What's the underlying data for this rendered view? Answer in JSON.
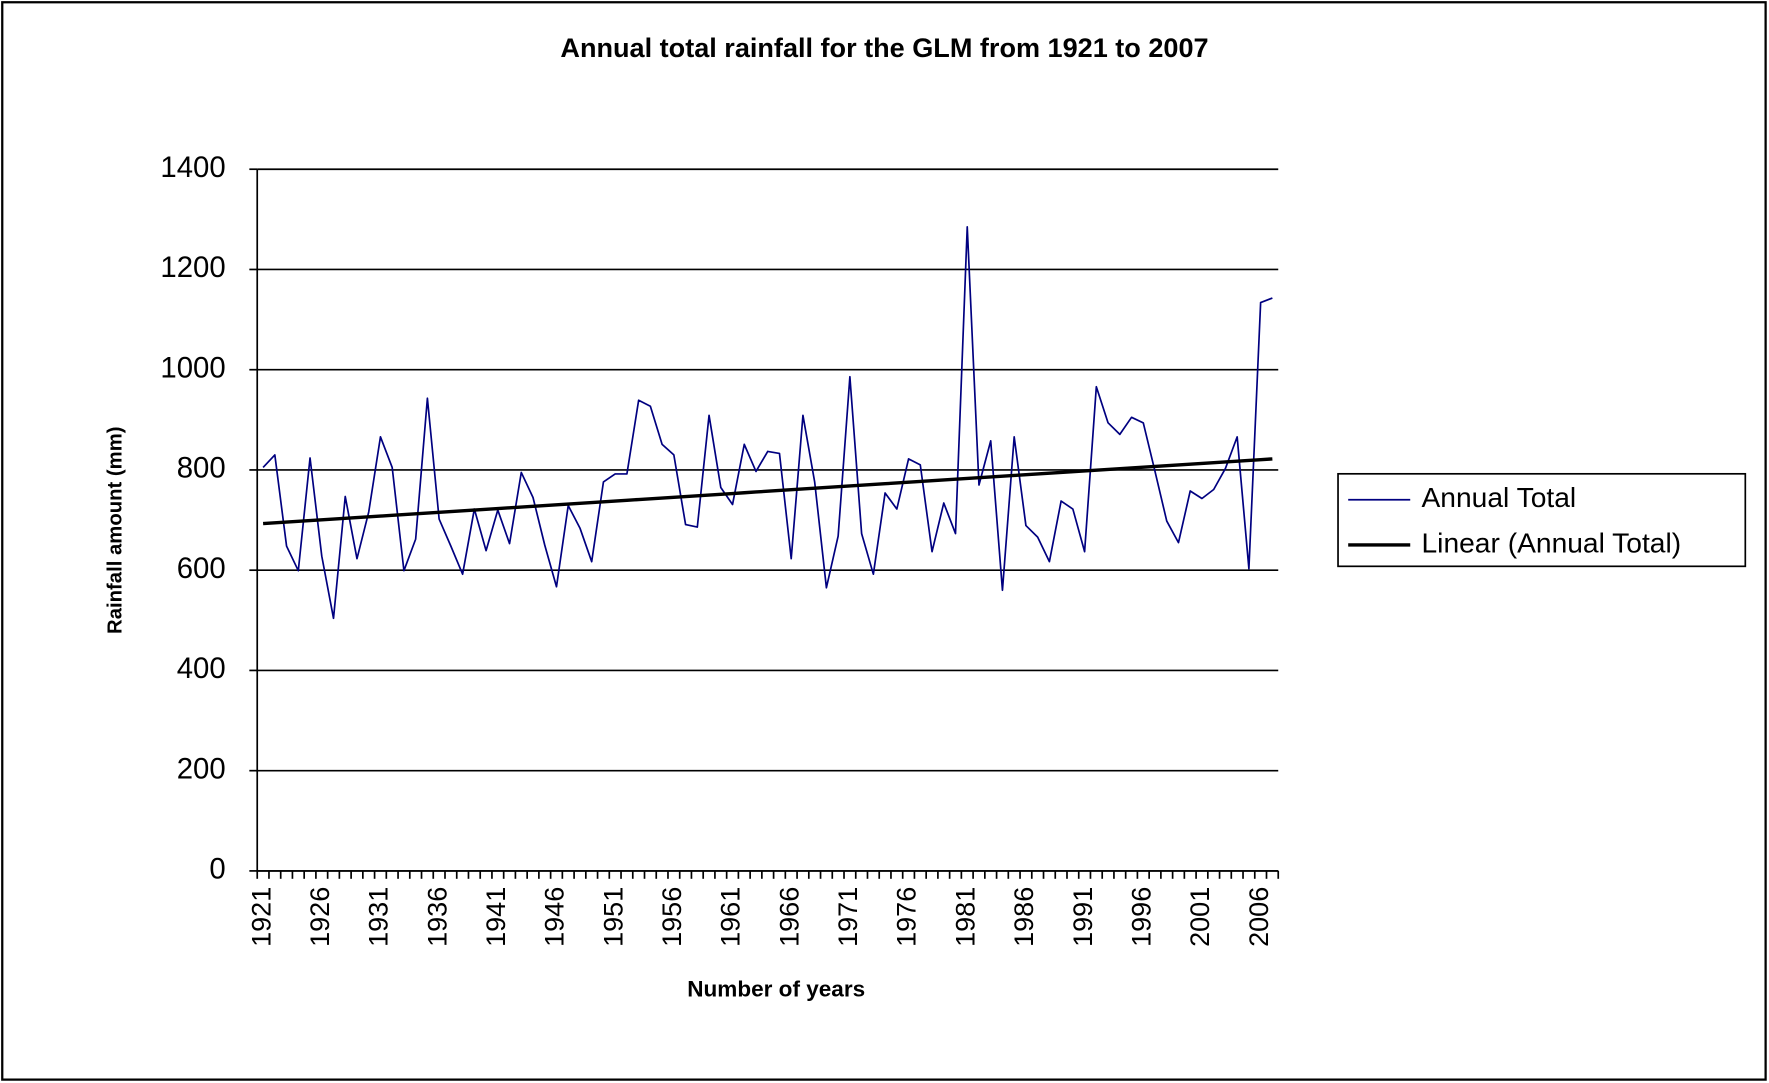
{
  "chart_data": {
    "type": "line",
    "title": "Annual total rainfall for the GLM from 1921 to 2007",
    "xlabel": "Number of years",
    "ylabel": "Rainfall amount (mm)",
    "categories": [
      "1921",
      null,
      null,
      null,
      null,
      "1926",
      null,
      null,
      null,
      null,
      "1931",
      null,
      null,
      null,
      null,
      "1936",
      null,
      null,
      null,
      null,
      "1941",
      null,
      null,
      null,
      null,
      "1946",
      null,
      null,
      null,
      null,
      "1951",
      null,
      null,
      null,
      null,
      "1956",
      null,
      null,
      null,
      null,
      "1961",
      null,
      null,
      null,
      null,
      "1966",
      null,
      null,
      null,
      null,
      "1971",
      null,
      null,
      null,
      null,
      "1976",
      null,
      null,
      null,
      null,
      "1981",
      null,
      null,
      null,
      null,
      "1986",
      null,
      null,
      null,
      null,
      "1991",
      null,
      null,
      null,
      null,
      "1996",
      null,
      null,
      null,
      null,
      "2001",
      null,
      null,
      null,
      null,
      "2006",
      null
    ],
    "series": [
      {
        "name": "Annual Total",
        "color": "#000080",
        "width": 1.5,
        "values": [
          805,
          830,
          648,
          599,
          824,
          628,
          504,
          747,
          623,
          716,
          866,
          805,
          599,
          662,
          943,
          702,
          648,
          592,
          722,
          639,
          720,
          653,
          795,
          745,
          650,
          567,
          729,
          684,
          617,
          776,
          792,
          792,
          939,
          927,
          851,
          830,
          691,
          686,
          909,
          765,
          731,
          851,
          797,
          837,
          833,
          623,
          909,
          776,
          565,
          668,
          986,
          673,
          592,
          754,
          722,
          822,
          810,
          637,
          734,
          673,
          1285,
          770,
          858,
          560,
          866,
          689,
          666,
          617,
          738,
          722,
          637,
          966,
          894,
          871,
          905,
          894,
          797,
          698,
          655,
          758,
          743,
          761,
          803,
          866,
          603,
          1134,
          1143
        ]
      },
      {
        "name": "Linear (Annual Total)",
        "color": "#000000",
        "width": 3,
        "values": [
          693,
          694.5,
          696,
          697.5,
          699,
          700.5,
          702,
          703.5,
          705,
          706.5,
          708,
          709.5,
          711,
          712.5,
          714,
          715.5,
          717,
          718.5,
          720,
          721.5,
          723,
          724.5,
          726,
          727.5,
          729,
          730.5,
          732,
          733.5,
          735,
          736.5,
          738,
          739.5,
          741,
          742.5,
          744,
          745.5,
          747,
          748.5,
          750,
          751.5,
          753,
          754.5,
          756,
          757.5,
          759,
          760.5,
          762,
          763.5,
          765,
          766.5,
          768,
          769.5,
          771,
          772.5,
          774,
          775.5,
          777,
          778.5,
          780,
          781.5,
          783,
          784.5,
          786,
          787.5,
          789,
          790.5,
          792,
          793.5,
          795,
          796.5,
          798,
          799.5,
          801,
          802.5,
          804,
          805.5,
          807,
          808.5,
          810,
          811.5,
          813,
          814.5,
          816,
          817.5,
          819,
          820.5,
          822
        ]
      }
    ],
    "ylim": [
      0,
      1400
    ],
    "yticks": [
      0,
      200,
      400,
      600,
      800,
      1000,
      1200,
      1400
    ],
    "grid": true,
    "legend": "right"
  }
}
